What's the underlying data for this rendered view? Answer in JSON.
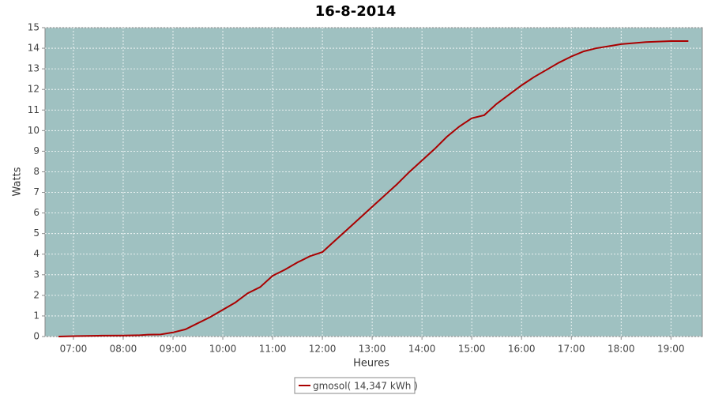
{
  "chart_data": {
    "type": "line",
    "title": "16-8-2014",
    "x_label": "Heures",
    "y_label": "Watts",
    "x": [
      6.7,
      7.0,
      7.5,
      8.0,
      8.3,
      8.5,
      8.75,
      9.0,
      9.25,
      9.5,
      9.75,
      10.0,
      10.25,
      10.5,
      10.75,
      11.0,
      11.25,
      11.5,
      11.75,
      12.0,
      12.25,
      12.5,
      12.75,
      13.0,
      13.25,
      13.5,
      13.75,
      14.0,
      14.25,
      14.5,
      14.75,
      15.0,
      15.25,
      15.5,
      15.75,
      16.0,
      16.25,
      16.5,
      16.75,
      17.0,
      17.25,
      17.5,
      17.75,
      18.0,
      18.5,
      19.0,
      19.35
    ],
    "series": [
      {
        "name": "gmosol( 14,347 kWh )",
        "color": "#aa0000",
        "values": [
          0,
          0.02,
          0.04,
          0.05,
          0.06,
          0.09,
          0.1,
          0.2,
          0.35,
          0.65,
          0.95,
          1.3,
          1.65,
          2.1,
          2.4,
          2.95,
          3.25,
          3.6,
          3.9,
          4.1,
          4.65,
          5.2,
          5.75,
          6.3,
          6.85,
          7.4,
          8.0,
          8.55,
          9.1,
          9.7,
          10.2,
          10.6,
          10.75,
          11.3,
          11.75,
          12.2,
          12.6,
          12.95,
          13.3,
          13.6,
          13.85,
          14.0,
          14.1,
          14.2,
          14.3,
          14.35,
          14.35
        ]
      }
    ],
    "xlim": [
      6.43,
      19.63
    ],
    "xticks": [
      {
        "value": 7,
        "label": "07:00"
      },
      {
        "value": 8,
        "label": "08:00"
      },
      {
        "value": 9,
        "label": "09:00"
      },
      {
        "value": 10,
        "label": "10:00"
      },
      {
        "value": 11,
        "label": "11:00"
      },
      {
        "value": 12,
        "label": "12:00"
      },
      {
        "value": 13,
        "label": "13:00"
      },
      {
        "value": 14,
        "label": "14:00"
      },
      {
        "value": 15,
        "label": "15:00"
      },
      {
        "value": 16,
        "label": "16:00"
      },
      {
        "value": 17,
        "label": "17:00"
      },
      {
        "value": 18,
        "label": "18:00"
      },
      {
        "value": 19,
        "label": "19:00"
      }
    ],
    "ylim": [
      0,
      15
    ],
    "yticks": [
      0,
      1,
      2,
      3,
      4,
      5,
      6,
      7,
      8,
      9,
      10,
      11,
      12,
      13,
      14,
      15
    ],
    "grid": true,
    "plot_background": "#9fc1c1",
    "legend": "bottom"
  }
}
